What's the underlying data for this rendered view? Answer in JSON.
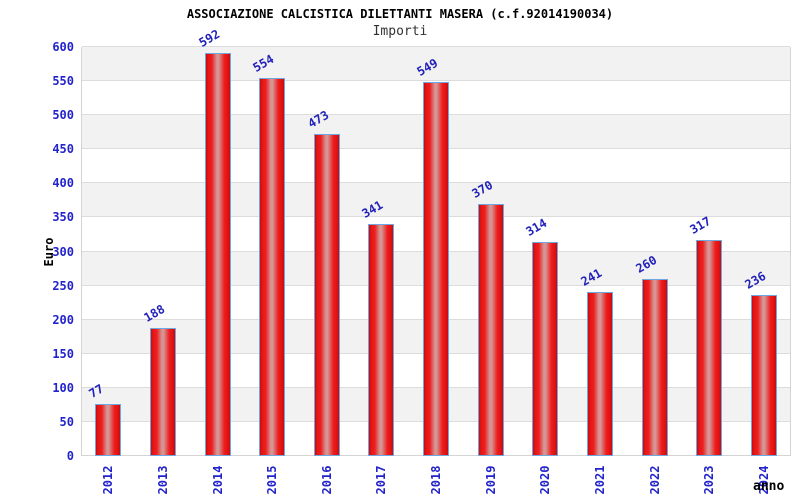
{
  "header": {
    "title": "ASSOCIAZIONE CALCISTICA DILETTANTI MASERA (c.f.92014190034)",
    "subtitle": "Importi"
  },
  "chart_data": {
    "type": "bar",
    "title": "ASSOCIAZIONE CALCISTICA DILETTANTI MASERA (c.f.92014190034)",
    "subtitle": "Importi",
    "categories": [
      "2012",
      "2013",
      "2014",
      "2015",
      "2016",
      "2017",
      "2018",
      "2019",
      "2020",
      "2021",
      "2022",
      "2023",
      "2024"
    ],
    "values": [
      77,
      188,
      592,
      554,
      473,
      341,
      549,
      370,
      314,
      241,
      260,
      317,
      236
    ],
    "xlabel": "anno",
    "ylabel": "Euro",
    "ylim": [
      0,
      600
    ],
    "ytick_step": 50,
    "yticks": [
      0,
      50,
      100,
      150,
      200,
      250,
      300,
      350,
      400,
      450,
      500,
      550,
      600
    ],
    "grid": "horizontal-bands-alternating",
    "legend_position": "none",
    "value_labels_rotation_deg": -30,
    "x_tick_rotation_deg": -90,
    "colors": {
      "bar_edge_red": "#c50d0d",
      "bar_main_red": "#e81616",
      "bar_center_highlight": "#d69494",
      "bar_border_blue": "#6fa8e0",
      "tick_label_blue": "#2323cc",
      "value_label_blue": "#2222bb",
      "band_gray": "#f2f2f2",
      "band_white": "#ffffff",
      "gridline_gray": "#dcdcdc",
      "title_black": "#000000",
      "subtitle_gray": "#333333"
    }
  }
}
